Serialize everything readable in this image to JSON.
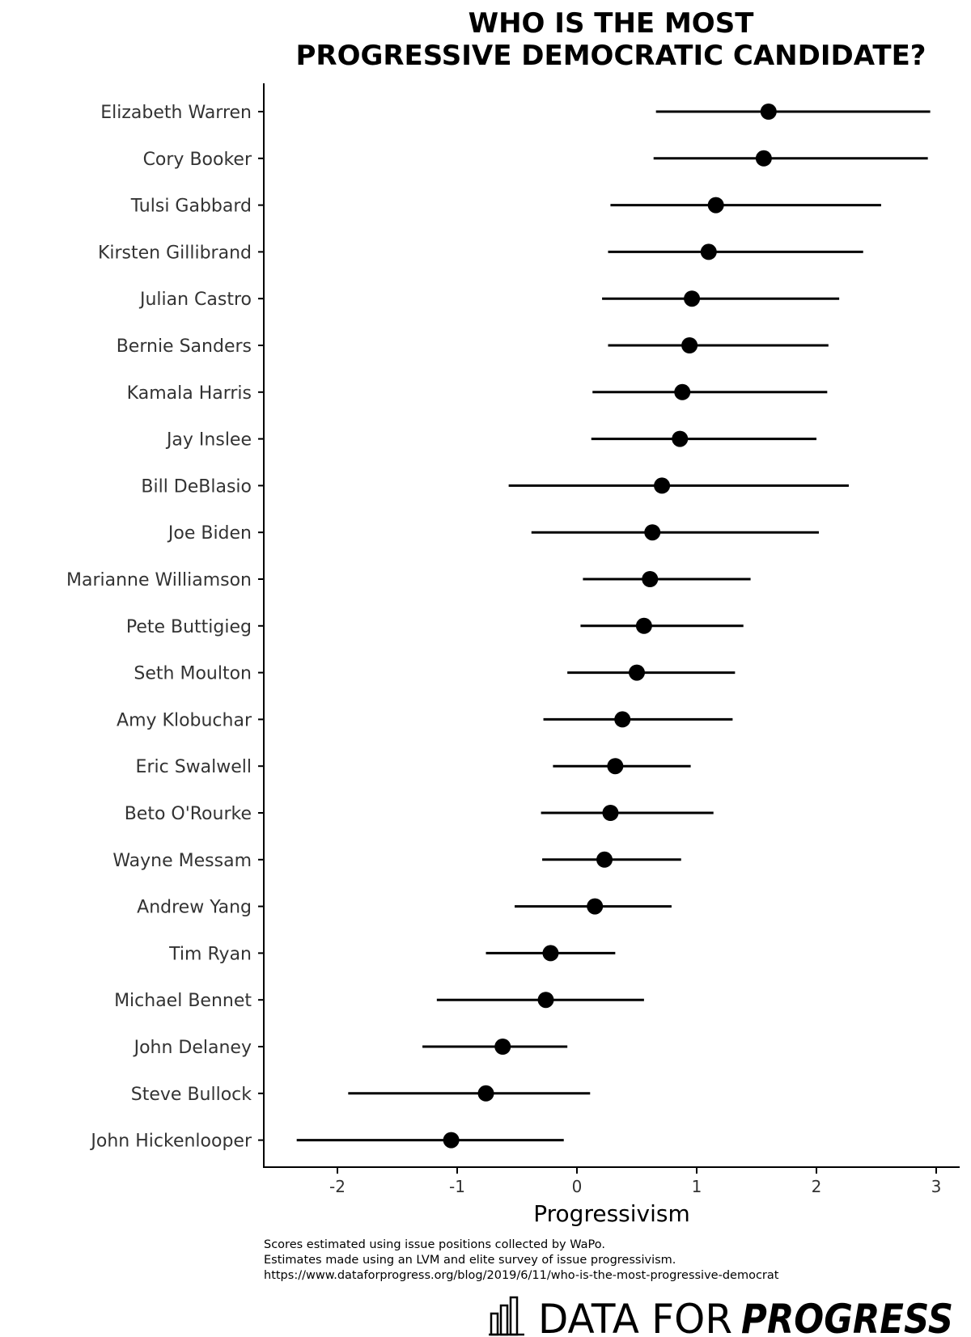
{
  "chart_data": {
    "type": "scatter",
    "subtype": "point-range",
    "orientation": "horizontal",
    "title_lines": [
      "WHO IS THE MOST",
      "PROGRESSIVE DEMOCRATIC CANDIDATE?"
    ],
    "xlabel": "Progressivism",
    "ylabel": "",
    "xlim": [
      -2.6,
      3.2
    ],
    "xticks": [
      -2,
      -1,
      0,
      1,
      2,
      3
    ],
    "grid": false,
    "candidates": [
      {
        "name": "Elizabeth Warren",
        "estimate": 1.6,
        "low": 0.66,
        "high": 2.95
      },
      {
        "name": "Cory Booker",
        "estimate": 1.56,
        "low": 0.64,
        "high": 2.93
      },
      {
        "name": "Tulsi Gabbard",
        "estimate": 1.16,
        "low": 0.28,
        "high": 2.54
      },
      {
        "name": "Kirsten Gillibrand",
        "estimate": 1.1,
        "low": 0.26,
        "high": 2.39
      },
      {
        "name": "Julian Castro",
        "estimate": 0.96,
        "low": 0.21,
        "high": 2.19
      },
      {
        "name": "Bernie Sanders",
        "estimate": 0.94,
        "low": 0.26,
        "high": 2.1
      },
      {
        "name": "Kamala Harris",
        "estimate": 0.88,
        "low": 0.13,
        "high": 2.09
      },
      {
        "name": "Jay Inslee",
        "estimate": 0.86,
        "low": 0.12,
        "high": 2.0
      },
      {
        "name": "Bill DeBlasio",
        "estimate": 0.71,
        "low": -0.57,
        "high": 2.27
      },
      {
        "name": "Joe Biden",
        "estimate": 0.63,
        "low": -0.38,
        "high": 2.02
      },
      {
        "name": "Marianne Williamson",
        "estimate": 0.61,
        "low": 0.05,
        "high": 1.45
      },
      {
        "name": "Pete Buttigieg",
        "estimate": 0.56,
        "low": 0.03,
        "high": 1.39
      },
      {
        "name": "Seth Moulton",
        "estimate": 0.5,
        "low": -0.08,
        "high": 1.32
      },
      {
        "name": "Amy Klobuchar",
        "estimate": 0.38,
        "low": -0.28,
        "high": 1.3
      },
      {
        "name": "Eric Swalwell",
        "estimate": 0.32,
        "low": -0.2,
        "high": 0.95
      },
      {
        "name": "Beto O'Rourke",
        "estimate": 0.28,
        "low": -0.3,
        "high": 1.14
      },
      {
        "name": "Wayne Messam",
        "estimate": 0.23,
        "low": -0.29,
        "high": 0.87
      },
      {
        "name": "Andrew Yang",
        "estimate": 0.15,
        "low": -0.52,
        "high": 0.79
      },
      {
        "name": "Tim Ryan",
        "estimate": -0.22,
        "low": -0.76,
        "high": 0.32
      },
      {
        "name": "Michael Bennet",
        "estimate": -0.26,
        "low": -1.17,
        "high": 0.56
      },
      {
        "name": "John Delaney",
        "estimate": -0.62,
        "low": -1.29,
        "high": -0.08
      },
      {
        "name": "Steve Bullock",
        "estimate": -0.76,
        "low": -1.91,
        "high": 0.11
      },
      {
        "name": "John Hickenlooper",
        "estimate": -1.05,
        "low": -2.34,
        "high": -0.11
      }
    ],
    "colors": {
      "point": "#000000",
      "line": "#000000",
      "axis": "#000000"
    }
  },
  "notes": [
    "Scores estimated using issue positions collected by WaPo.",
    "Estimates made using an LVM and elite survey of issue progressivism.",
    "https://www.dataforprogress.org/blog/2019/6/11/who-is-the-most-progressive-democrat"
  ],
  "brand": {
    "icon": "bar-chart-icon",
    "text_light": "DATA FOR",
    "text_bold": "PROGRESS"
  }
}
